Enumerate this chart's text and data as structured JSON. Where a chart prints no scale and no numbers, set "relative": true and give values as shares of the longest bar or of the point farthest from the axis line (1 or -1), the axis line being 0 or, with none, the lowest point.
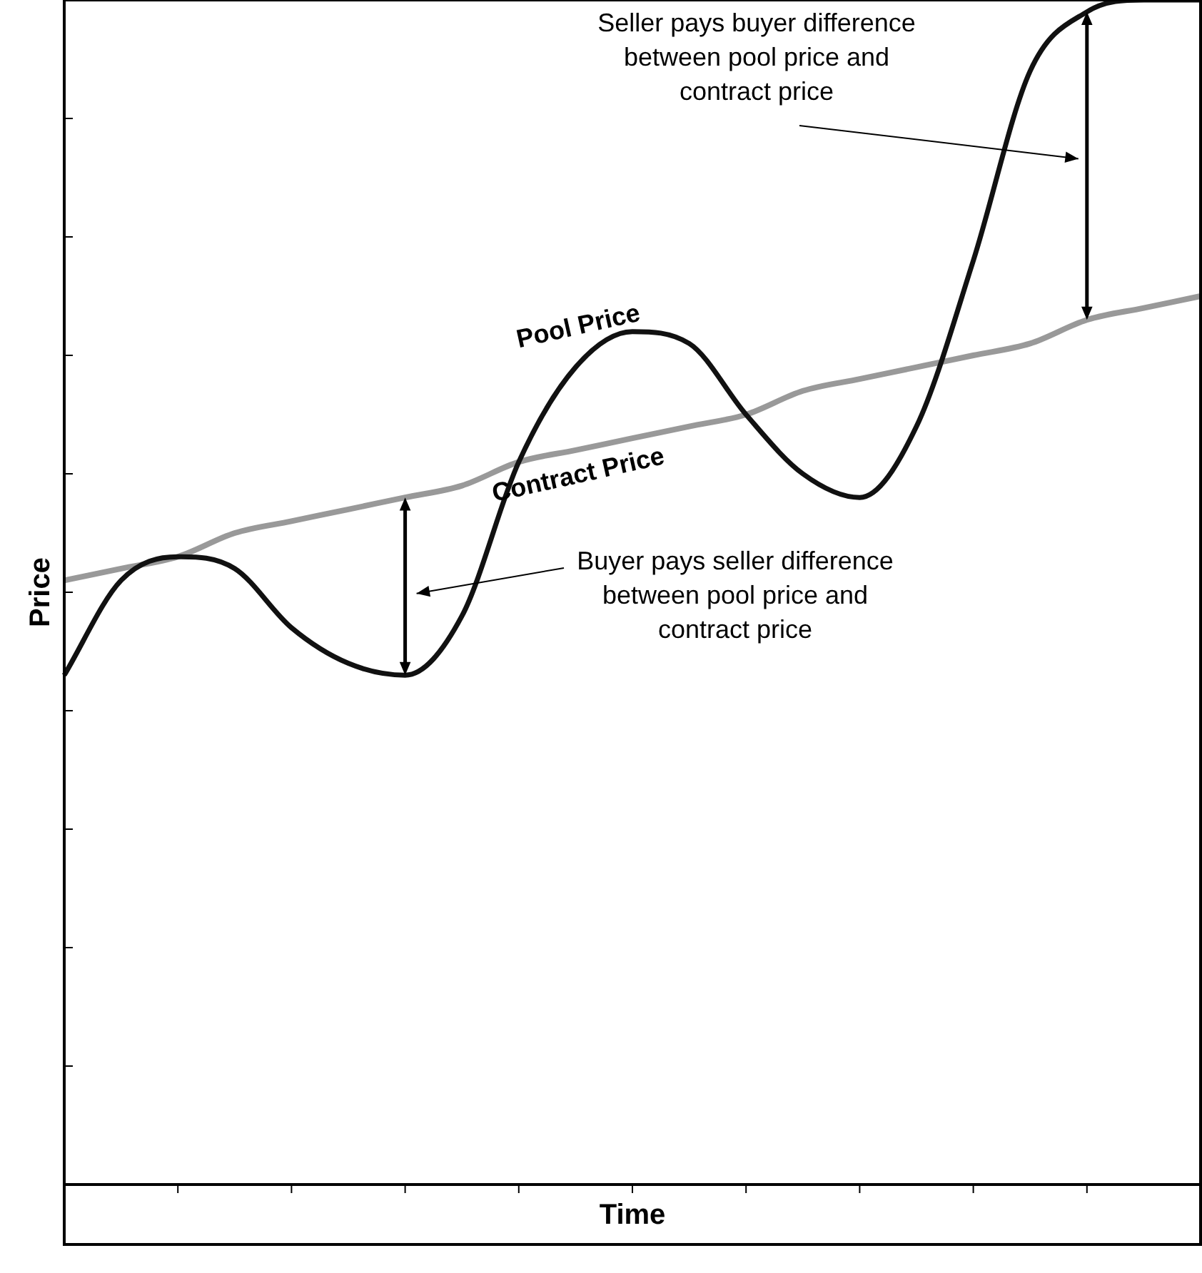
{
  "chart_data": {
    "type": "line",
    "relative": true,
    "xlabel": "Time",
    "ylabel": "Price",
    "legend": false,
    "marker": "none",
    "categories": [
      null,
      null,
      null,
      null,
      null,
      null,
      null,
      null,
      null,
      null,
      null,
      null,
      null,
      null,
      null,
      null,
      null,
      null,
      null,
      null,
      null
    ],
    "series": [
      {
        "name": "Pool Price",
        "color": "#111111",
        "values": [
          0.43,
          0.51,
          0.53,
          0.52,
          0.47,
          0.44,
          0.43,
          0.48,
          0.61,
          0.69,
          0.72,
          0.71,
          0.65,
          0.6,
          0.58,
          0.64,
          0.78,
          0.94,
          0.99,
          1.0,
          1.0
        ]
      },
      {
        "name": "Contract Price",
        "color": "#999999",
        "values": [
          0.51,
          0.52,
          0.53,
          0.55,
          0.56,
          0.57,
          0.58,
          0.59,
          0.61,
          0.62,
          0.63,
          0.64,
          0.65,
          0.67,
          0.68,
          0.69,
          0.7,
          0.71,
          0.73,
          0.74,
          0.75
        ]
      }
    ],
    "annotations": [
      "Seller pays buyer difference between pool price and contract price",
      "Buyer pays seller difference between pool price and contract price"
    ]
  }
}
